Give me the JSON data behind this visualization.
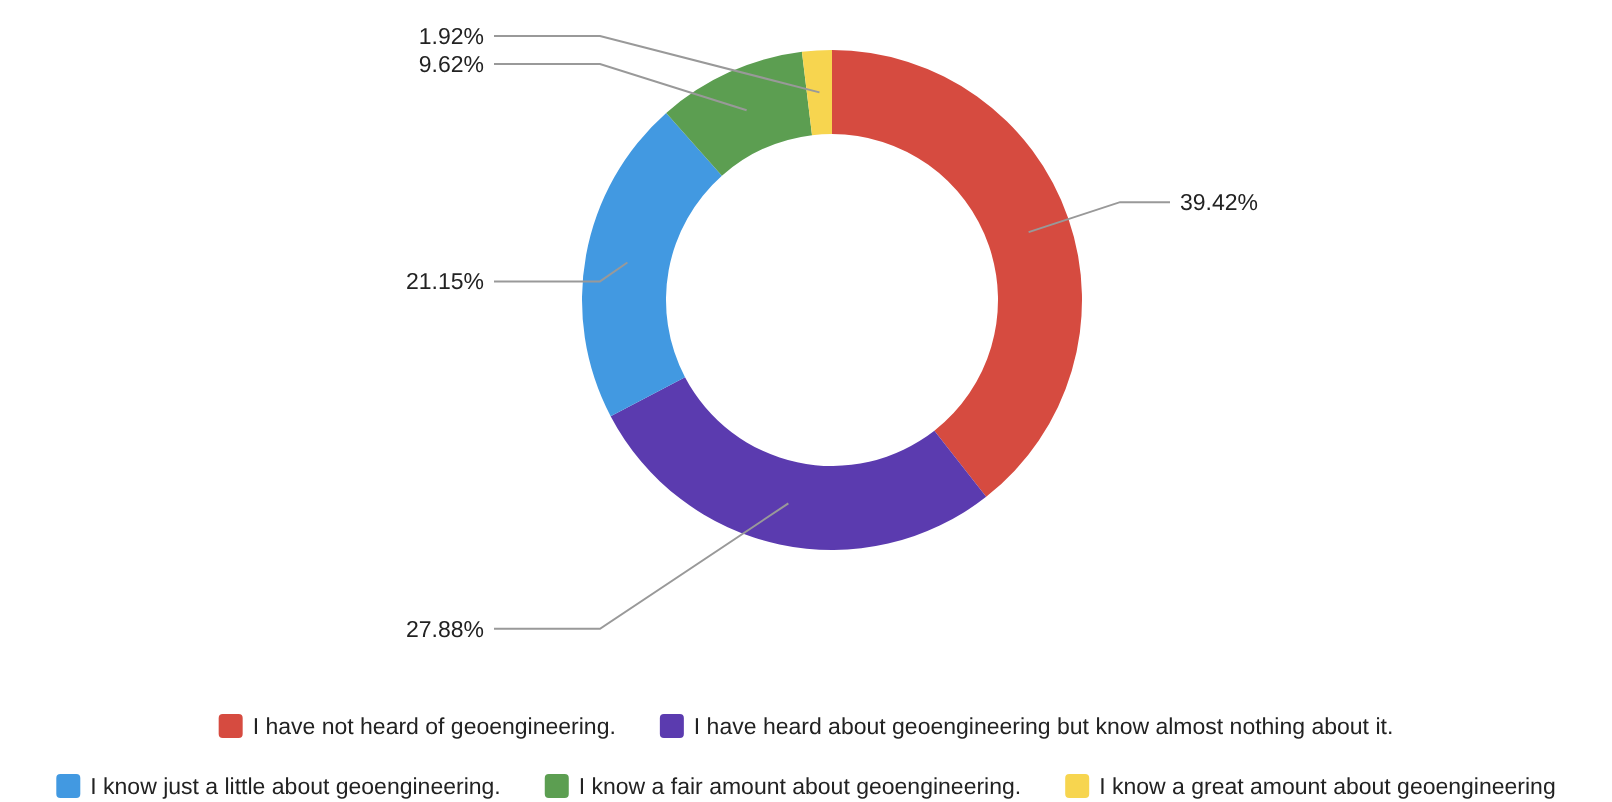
{
  "chart_data": {
    "type": "donut",
    "categories": [
      "I have not heard of geoengineering.",
      "I have heard about geoengineering but know almost nothing about it.",
      "I know just a little about geoengineering.",
      "I know a fair amount about geoengineering.",
      "I know a great amount about geoengineering"
    ],
    "values": [
      39.42,
      27.88,
      21.15,
      9.62,
      1.92
    ],
    "value_labels": [
      "39.42%",
      "27.88%",
      "21.15%",
      "9.62%",
      "1.92%"
    ],
    "colors": [
      "#d64b40",
      "#5b3baf",
      "#4299e1",
      "#5c9e51",
      "#f7d54f"
    ],
    "legend": "bottom"
  }
}
